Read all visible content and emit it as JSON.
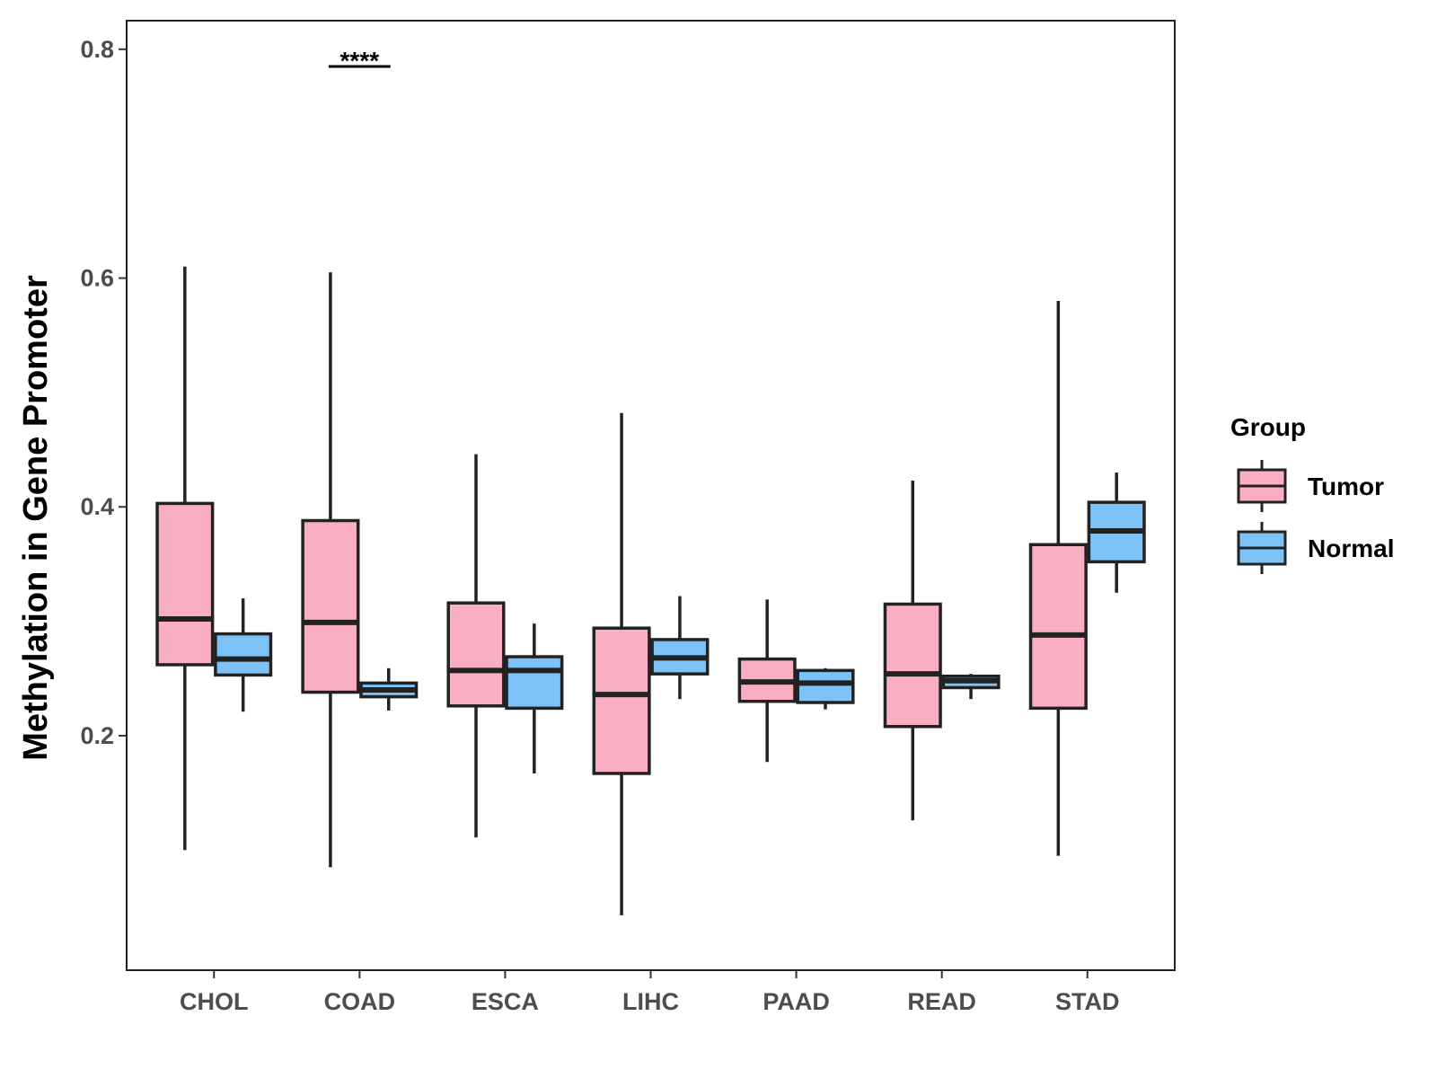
{
  "chart_data": {
    "type": "boxplot",
    "title": "",
    "xlabel": "",
    "ylabel": "Methylation in Gene Promoter",
    "ylim": [
      -0.005,
      0.825
    ],
    "yticks": [
      0.2,
      0.4,
      0.6,
      0.8
    ],
    "ytick_labels": [
      "0.2",
      "0.4",
      "0.6",
      "0.8"
    ],
    "categories": [
      "CHOL",
      "COAD",
      "ESCA",
      "LIHC",
      "PAAD",
      "READ",
      "STAD"
    ],
    "legend": {
      "title": "Group",
      "position": "right",
      "entries": [
        {
          "name": "Tumor",
          "color": "#F9AFC1"
        },
        {
          "name": "Normal",
          "color": "#7CC2F6"
        }
      ]
    },
    "series": [
      {
        "name": "Tumor",
        "color": "#F9AFC1",
        "boxes": [
          {
            "min": 0.1,
            "q1": 0.262,
            "median": 0.302,
            "q3": 0.403,
            "max": 0.61
          },
          {
            "min": 0.085,
            "q1": 0.238,
            "median": 0.299,
            "q3": 0.388,
            "max": 0.605
          },
          {
            "min": 0.111,
            "q1": 0.226,
            "median": 0.257,
            "q3": 0.316,
            "max": 0.446
          },
          {
            "min": 0.043,
            "q1": 0.167,
            "median": 0.236,
            "q3": 0.294,
            "max": 0.482
          },
          {
            "min": 0.177,
            "q1": 0.23,
            "median": 0.247,
            "q3": 0.267,
            "max": 0.319
          },
          {
            "min": 0.126,
            "q1": 0.208,
            "median": 0.254,
            "q3": 0.315,
            "max": 0.423
          },
          {
            "min": 0.095,
            "q1": 0.224,
            "median": 0.288,
            "q3": 0.367,
            "max": 0.58
          }
        ]
      },
      {
        "name": "Normal",
        "color": "#7CC2F6",
        "boxes": [
          {
            "min": 0.221,
            "q1": 0.253,
            "median": 0.267,
            "q3": 0.289,
            "max": 0.32
          },
          {
            "min": 0.222,
            "q1": 0.234,
            "median": 0.24,
            "q3": 0.246,
            "max": 0.259
          },
          {
            "min": 0.167,
            "q1": 0.224,
            "median": 0.257,
            "q3": 0.269,
            "max": 0.298
          },
          {
            "min": 0.232,
            "q1": 0.254,
            "median": 0.268,
            "q3": 0.284,
            "max": 0.322
          },
          {
            "min": 0.223,
            "q1": 0.229,
            "median": 0.246,
            "q3": 0.257,
            "max": 0.259
          },
          {
            "min": 0.232,
            "q1": 0.242,
            "median": 0.248,
            "q3": 0.252,
            "max": 0.254
          },
          {
            "min": 0.325,
            "q1": 0.352,
            "median": 0.379,
            "q3": 0.404,
            "max": 0.43
          }
        ]
      }
    ],
    "annotations": [
      {
        "category": "COAD",
        "text": "****",
        "y": 0.785
      }
    ]
  }
}
